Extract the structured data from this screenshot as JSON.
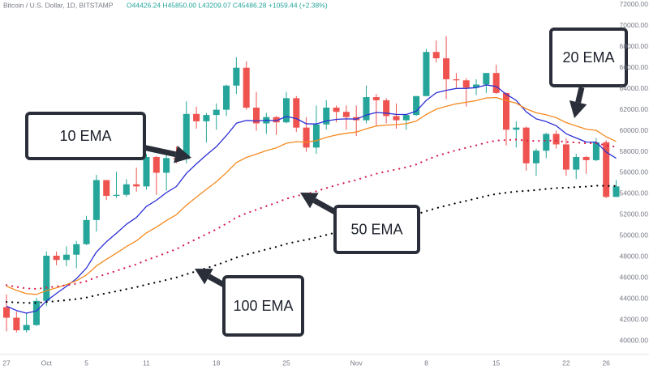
{
  "chart_data": {
    "type": "candlestick",
    "header": {
      "symbol": "Bitcoin / U.S. Dollar, 1D, BITSTAMP",
      "ohlc": "O44426.24 H45850.00 L43209.07 C45486.28 +1059.44 (+2.38%)"
    },
    "categories": [
      "27",
      null,
      null,
      null,
      "Oct",
      null,
      null,
      null,
      "5",
      null,
      null,
      null,
      null,
      null,
      "11",
      null,
      null,
      null,
      null,
      null,
      null,
      "18",
      null,
      null,
      null,
      null,
      null,
      null,
      "25",
      null,
      null,
      null,
      null,
      null,
      null,
      "Nov",
      null,
      null,
      null,
      null,
      null,
      null,
      "8",
      null,
      null,
      null,
      null,
      null,
      null,
      "15",
      null,
      null,
      null,
      null,
      null,
      null,
      "22",
      null,
      null,
      null,
      "26",
      null
    ],
    "open": [
      43200,
      42200,
      41000,
      41500,
      43800,
      48100,
      47700,
      48200,
      49200,
      51500,
      55300,
      53800,
      53900,
      54900,
      54700,
      57500,
      56000,
      57400,
      57300,
      61600,
      60900,
      61500,
      62000,
      64300,
      66000,
      62200,
      60700,
      61300,
      60800,
      63100,
      60300,
      58400,
      60600,
      62200,
      61800,
      61300,
      61000,
      63200,
      62900,
      61400,
      61000,
      61500,
      63300,
      67500,
      66900,
      64900,
      64800,
      64100,
      64400,
      65500,
      63600,
      60100,
      60300,
      56900,
      58100,
      59700,
      58700,
      56300,
      57500,
      57200,
      58900,
      53700
    ],
    "high": [
      44400,
      42800,
      42600,
      44100,
      48500,
      48500,
      49000,
      49500,
      51900,
      55800,
      55300,
      56100,
      55400,
      56500,
      57800,
      57600,
      57700,
      58500,
      62800,
      62300,
      61700,
      62600,
      64400,
      67000,
      66600,
      63700,
      61700,
      61400,
      63700,
      63300,
      61300,
      62400,
      62900,
      62400,
      62400,
      62400,
      64300,
      63500,
      63100,
      62600,
      61600,
      63300,
      67800,
      68600,
      69000,
      65500,
      65000,
      64900,
      65500,
      66300,
      63600,
      60900,
      60400,
      58300,
      59800,
      60000,
      59300,
      57800,
      57600,
      59300,
      59100,
      55300
    ],
    "low": [
      40900,
      40800,
      40800,
      41400,
      43300,
      47200,
      47100,
      46900,
      49100,
      50400,
      53400,
      53600,
      53700,
      54200,
      54400,
      53900,
      54300,
      56900,
      56900,
      60200,
      58900,
      60100,
      61400,
      63500,
      62000,
      60000,
      59700,
      59600,
      60700,
      59900,
      58000,
      57800,
      60100,
      60800,
      60100,
      59500,
      60700,
      60400,
      60700,
      60200,
      60100,
      61400,
      63300,
      66500,
      63000,
      64100,
      62300,
      63400,
      63600,
      63500,
      58600,
      58400,
      56200,
      55700,
      57400,
      58300,
      55700,
      55400,
      55900,
      57100,
      53600,
      53700
    ],
    "close": [
      42200,
      41000,
      41500,
      43800,
      48100,
      47700,
      48200,
      49200,
      51500,
      55300,
      53800,
      53900,
      54900,
      54700,
      57500,
      56000,
      57400,
      57300,
      61600,
      60900,
      61500,
      62000,
      64300,
      66000,
      62200,
      60700,
      61300,
      60800,
      63100,
      60300,
      58400,
      60600,
      62200,
      61800,
      61300,
      61000,
      63200,
      62900,
      61400,
      61000,
      61500,
      63300,
      67500,
      66900,
      64900,
      64800,
      64100,
      64400,
      65500,
      63600,
      60100,
      60300,
      56900,
      58100,
      59700,
      58700,
      56300,
      57500,
      57200,
      58900,
      53700,
      54700
    ],
    "up_color": "#26a69a",
    "down_color": "#ef5350",
    "series": [
      {
        "name": "10 EMA",
        "color": "#2b2fd4",
        "style": "solid",
        "values": [
          43300,
          42881,
          42630,
          42843,
          43800,
          44510,
          45182,
          45913,
          46930,
          48453,
          49426,
          50240,
          51088,
          51745,
          52792,
          53376,
          54108,
          54689,
          55947,
          56848,
          57695,
          58478,
          59538,
          60714,
          60984,
          60932,
          60999,
          60963,
          61352,
          61161,
          60658,
          60647,
          60930,
          61088,
          61127,
          61104,
          61485,
          61743,
          61681,
          61557,
          61547,
          61866,
          62891,
          63621,
          63854,
          64026,
          64039,
          64105,
          64359,
          64221,
          63471,
          62894,
          61803,
          61129,
          60869,
          60474,
          59714,
          59311,
          58927,
          58922,
          57972,
          57377
        ]
      },
      {
        "name": "20 EMA",
        "color": "#f58a1f",
        "style": "solid",
        "values": [
          45200,
          44800,
          44486,
          44421,
          44771,
          45050,
          45350,
          45717,
          46268,
          47128,
          47763,
          48347,
          48971,
          49516,
          50276,
          50821,
          51447,
          52004,
          52918,
          53678,
          54423,
          55144,
          56016,
          56966,
          57464,
          57772,
          58108,
          58364,
          58815,
          58956,
          58903,
          59065,
          59363,
          59595,
          59757,
          59875,
          60192,
          60450,
          60540,
          60584,
          60671,
          60921,
          61547,
          62057,
          62328,
          62563,
          62709,
          62870,
          63120,
          63166,
          62874,
          62629,
          62084,
          61705,
          61514,
          61246,
          60775,
          60463,
          60152,
          60033,
          59430,
          58980
        ]
      },
      {
        "name": "50 EMA",
        "color": "#d81b4f",
        "style": "dotted",
        "values": [
          45300,
          45131,
          44989,
          44942,
          45066,
          45169,
          45288,
          45441,
          45679,
          46056,
          46360,
          46656,
          46979,
          47282,
          47683,
          48009,
          48377,
          48727,
          49232,
          49689,
          50152,
          50616,
          51152,
          51734,
          52144,
          52479,
          52825,
          53138,
          53528,
          53793,
          53974,
          54234,
          54546,
          54830,
          55084,
          55316,
          55625,
          55910,
          56125,
          56316,
          56519,
          56785,
          57205,
          57585,
          57872,
          58144,
          58377,
          58613,
          58883,
          59068,
          59108,
          59155,
          59067,
          59029,
          59055,
          59041,
          58934,
          58878,
          58812,
          58815,
          58614,
          58461
        ]
      },
      {
        "name": "100 EMA",
        "color": "#000000",
        "style": "dotted",
        "values": [
          43700,
          43647,
          43604,
          43608,
          43697,
          43776,
          43864,
          43970,
          44119,
          44340,
          44527,
          44713,
          44915,
          45109,
          45354,
          45565,
          45799,
          46027,
          46335,
          46623,
          46918,
          47217,
          47555,
          47920,
          48203,
          48450,
          48704,
          48944,
          49224,
          49443,
          49620,
          49837,
          50082,
          50314,
          50532,
          50739,
          50986,
          51222,
          51424,
          51614,
          51810,
          52037,
          52343,
          52631,
          52874,
          53110,
          53328,
          53547,
          53784,
          53978,
          54099,
          54222,
          54275,
          54351,
          54457,
          54541,
          54576,
          54634,
          54685,
          54768,
          54747,
          54746
        ]
      }
    ],
    "ylim": [
      38700,
      72450
    ],
    "yticks": [
      {
        "value": 40000,
        "label": "40000.00"
      },
      {
        "value": 42000,
        "label": "42000.00"
      },
      {
        "value": 44000,
        "label": "44000.00"
      },
      {
        "value": 46000,
        "label": "46000.00"
      },
      {
        "value": 48000,
        "label": "48000.00"
      },
      {
        "value": 50000,
        "label": "50000.00"
      },
      {
        "value": 52000,
        "label": "52000.00"
      },
      {
        "value": 54000,
        "label": "54000.00"
      },
      {
        "value": 56000,
        "label": "56000.00"
      },
      {
        "value": 58000,
        "label": "58000.00"
      },
      {
        "value": 60000,
        "label": "60000.00"
      },
      {
        "value": 62000,
        "label": "62000.00"
      },
      {
        "value": 64000,
        "label": "64000.00"
      },
      {
        "value": 66000,
        "label": "66000.00"
      },
      {
        "value": 68000,
        "label": "68000.00"
      },
      {
        "value": 70000,
        "label": "70000.00"
      },
      {
        "value": 72000,
        "label": "72000.00"
      }
    ],
    "grid": false
  }
}
